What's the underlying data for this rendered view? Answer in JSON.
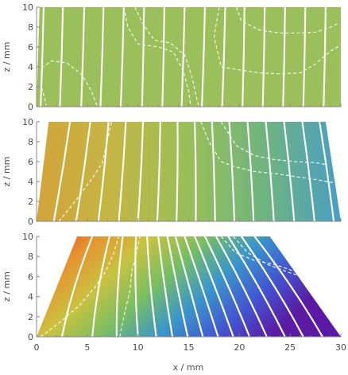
{
  "chart_data": [
    {
      "type": "contour",
      "panel": 1,
      "xlim": [
        0,
        30
      ],
      "ylim": [
        0,
        10
      ],
      "ylabel": "z / mm",
      "yticks": [
        0,
        2,
        4,
        6,
        8,
        10
      ],
      "domain_top_x": [
        0.3,
        30
      ],
      "domain_bottom_x": [
        0,
        30
      ],
      "fill": "#9bbf5a",
      "contour_top_x": [
        0.7,
        2.6,
        4.7,
        6.6,
        8.6,
        10.6,
        12.6,
        14.6,
        16.6,
        18.6,
        20.5,
        22.5,
        24.5,
        26.5,
        28.5
      ],
      "contour_bottom_x": [
        0.4,
        2.3,
        4.4,
        6.3,
        8.3,
        10.4,
        12.4,
        14.3,
        16.3,
        18.3,
        20.3,
        22.3,
        24.3,
        26.3,
        28.3
      ]
    },
    {
      "type": "contour",
      "panel": 2,
      "xlim": [
        0,
        30
      ],
      "ylim": [
        0,
        10
      ],
      "ylabel": "z / mm",
      "yticks": [
        0,
        2,
        4,
        6,
        8,
        10
      ],
      "domain_top_x": [
        1.2,
        28.5
      ],
      "domain_bottom_x": [
        0,
        30
      ],
      "fill_gradient": [
        "#d3a43a",
        "#c4b645",
        "#98bf58",
        "#6fb47f",
        "#4a9ec4"
      ],
      "contour_top_x": [
        3.3,
        5.3,
        7.1,
        8.8,
        10.5,
        12.2,
        13.9,
        15.6,
        17.3,
        19.0,
        20.8,
        22.6,
        24.4,
        26.2,
        27.9
      ],
      "contour_bottom_x": [
        1.7,
        3.9,
        6.1,
        8.1,
        10.0,
        11.9,
        13.8,
        15.7,
        17.6,
        19.5,
        21.4,
        23.4,
        25.4,
        27.4,
        29.3
      ]
    },
    {
      "type": "contour",
      "panel": 3,
      "xlim": [
        0,
        30
      ],
      "ylim": [
        0,
        10
      ],
      "xlabel": "x / mm",
      "ylabel": "z / mm",
      "xticks": [
        0,
        5,
        10,
        15,
        20,
        25,
        30
      ],
      "yticks": [
        0,
        2,
        4,
        6,
        8,
        10
      ],
      "domain_top_x": [
        4.0,
        23.0
      ],
      "domain_bottom_x": [
        0,
        30
      ],
      "fill_gradient": [
        "#d92d1e",
        "#e8902e",
        "#c9c240",
        "#79be62",
        "#3b96c9",
        "#4256d2",
        "#5a1aa3"
      ],
      "contour_top_x": [
        5.5,
        7.2,
        8.5,
        9.8,
        10.9,
        12.0,
        12.9,
        13.7,
        14.6,
        15.6,
        16.6,
        17.7,
        18.9,
        20.2,
        21.5
      ],
      "contour_bottom_x": [
        2.5,
        5.5,
        7.9,
        10.0,
        11.8,
        13.4,
        14.9,
        16.4,
        17.9,
        19.4,
        21.0,
        22.7,
        24.5,
        26.3,
        28.2
      ]
    }
  ]
}
